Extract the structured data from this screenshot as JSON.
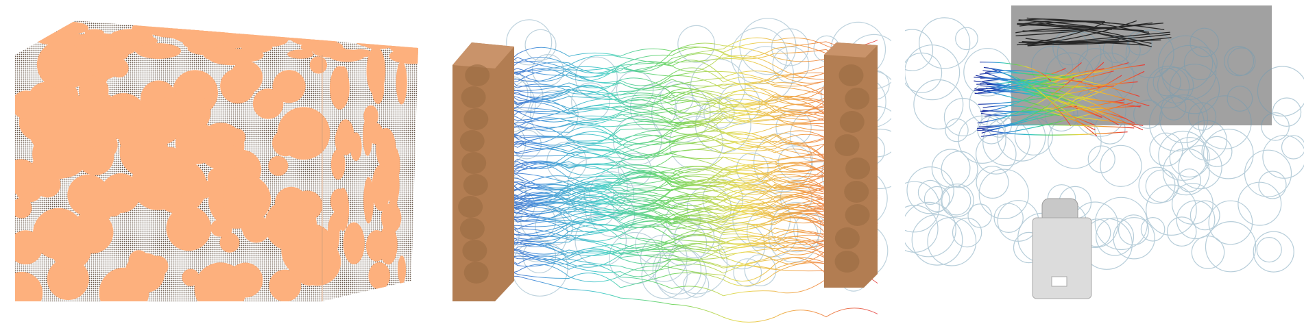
{
  "scene": {
    "panels": [
      {
        "id": "packed-spheres",
        "caption": ""
      },
      {
        "id": "flow-streamlines",
        "caption": ""
      },
      {
        "id": "camera-view",
        "caption": ""
      }
    ]
  },
  "colors": {
    "background": "#ffffff",
    "sphere_cut_face": "#fdb07d",
    "sphere_shade": "#6b5a4c",
    "wall_solid": "#b27d52",
    "wall_cut_face": "#c9936a",
    "pore_network": "#6f9cb4",
    "camera_body": "#dcdcdc",
    "camera_plane": "#8a8a8a",
    "streamline_ramp": [
      "#1c2a9c",
      "#2f7fd6",
      "#2fc7c0",
      "#5cd04a",
      "#e6d43a",
      "#f08a2c",
      "#e33a3a"
    ]
  },
  "icons": {
    "camera": "camera-icon"
  }
}
